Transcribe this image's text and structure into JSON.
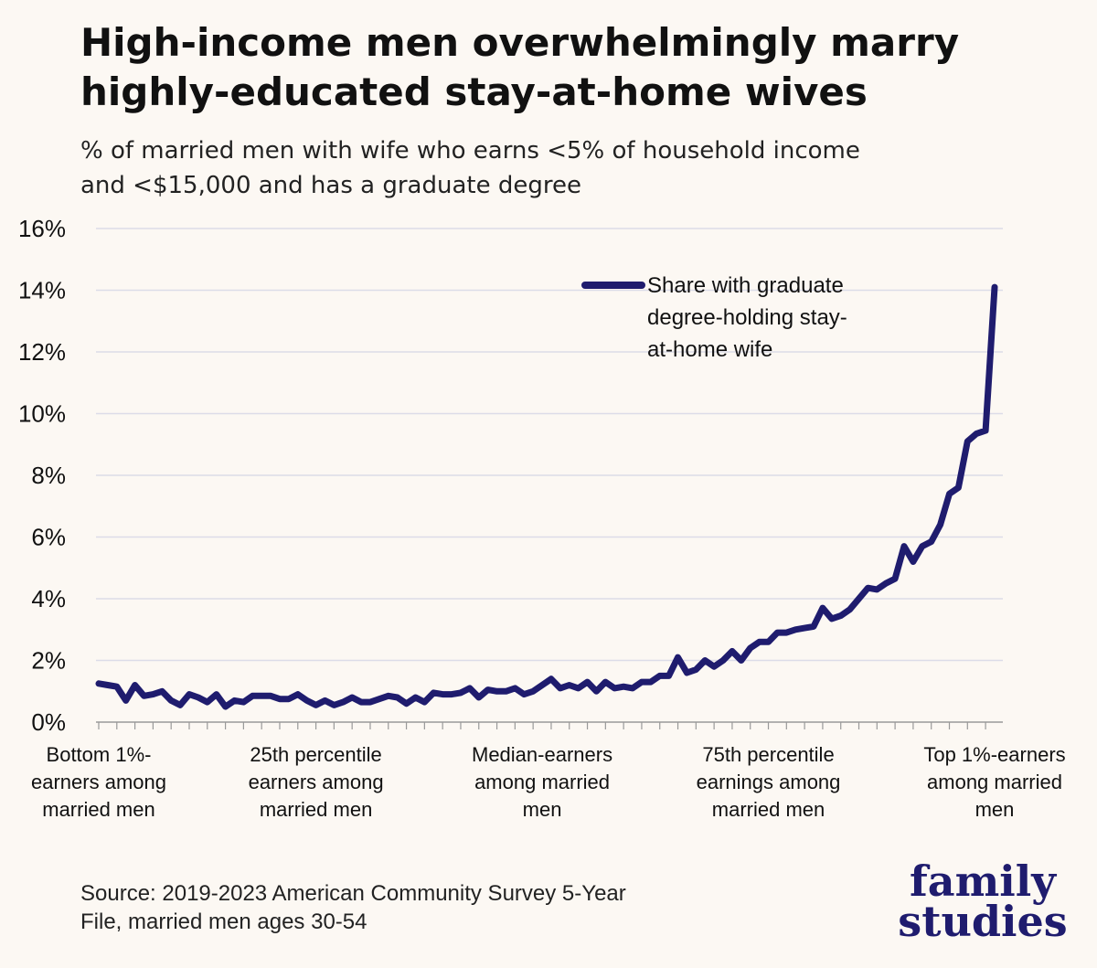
{
  "header": {
    "title": "High-income men overwhelmingly marry\nhighly-educated stay-at-home wives",
    "subtitle": "% of married men with wife who earns <5% of household income\nand <$15,000 and has a graduate degree"
  },
  "footer": {
    "source": "Source: 2019-2023 American Community Survey 5-Year\nFile, married men ages 30-54",
    "logo_text": "family\nstudies"
  },
  "colors": {
    "line": "#1f1c6e",
    "grid": "#dcdce8",
    "background": "#fcf8f3"
  },
  "chart_data": {
    "type": "line",
    "title": "High-income men overwhelmingly marry highly-educated stay-at-home wives",
    "subtitle": "% of married men with wife who earns <5% of household income and <$15,000 and has a graduate degree",
    "xlabel": "",
    "ylabel": "",
    "ylim": [
      0,
      16
    ],
    "yticks": [
      0,
      2,
      4,
      6,
      8,
      10,
      12,
      14,
      16
    ],
    "ytick_labels": [
      "0%",
      "2%",
      "4%",
      "6%",
      "8%",
      "10%",
      "12%",
      "14%",
      "16%"
    ],
    "grid": true,
    "legend_position": "top-right",
    "x_category_labels": [
      {
        "pos": 1,
        "label": [
          "Bottom 1%-",
          "earners among",
          "married men"
        ]
      },
      {
        "pos": 25,
        "label": [
          "25th percentile",
          "earners among",
          "married men"
        ]
      },
      {
        "pos": 50,
        "label": [
          "Median-earners",
          "among married",
          "men"
        ]
      },
      {
        "pos": 75,
        "label": [
          "75th percentile",
          "earnings among",
          "married men"
        ]
      },
      {
        "pos": 100,
        "label": [
          "Top 1%-earners",
          "among married",
          "men"
        ]
      }
    ],
    "series": [
      {
        "name": "Share with graduate degree-holding stay-at-home wife",
        "legend_lines": [
          "Share with graduate",
          "degree-holding stay-",
          "at-home wife"
        ],
        "x": [
          1,
          2,
          3,
          4,
          5,
          6,
          7,
          8,
          9,
          10,
          11,
          12,
          13,
          14,
          15,
          16,
          17,
          18,
          19,
          20,
          21,
          22,
          23,
          24,
          25,
          26,
          27,
          28,
          29,
          30,
          31,
          32,
          33,
          34,
          35,
          36,
          37,
          38,
          39,
          40,
          41,
          42,
          43,
          44,
          45,
          46,
          47,
          48,
          49,
          50,
          51,
          52,
          53,
          54,
          55,
          56,
          57,
          58,
          59,
          60,
          61,
          62,
          63,
          64,
          65,
          66,
          67,
          68,
          69,
          70,
          71,
          72,
          73,
          74,
          75,
          76,
          77,
          78,
          79,
          80,
          81,
          82,
          83,
          84,
          85,
          86,
          87,
          88,
          89,
          90,
          91,
          92,
          93,
          94,
          95,
          96,
          97,
          98,
          99,
          100
        ],
        "values": [
          1.25,
          1.2,
          1.15,
          0.7,
          1.2,
          0.85,
          0.9,
          1.0,
          0.7,
          0.55,
          0.9,
          0.8,
          0.65,
          0.9,
          0.5,
          0.7,
          0.65,
          0.85,
          0.85,
          0.85,
          0.75,
          0.75,
          0.9,
          0.7,
          0.55,
          0.7,
          0.55,
          0.65,
          0.8,
          0.65,
          0.65,
          0.75,
          0.85,
          0.8,
          0.6,
          0.8,
          0.65,
          0.95,
          0.9,
          0.9,
          0.95,
          1.1,
          0.8,
          1.05,
          1.0,
          1.0,
          1.1,
          0.9,
          1.0,
          1.2,
          1.4,
          1.1,
          1.2,
          1.1,
          1.3,
          1.0,
          1.3,
          1.1,
          1.15,
          1.1,
          1.3,
          1.3,
          1.5,
          1.5,
          2.1,
          1.6,
          1.7,
          2.0,
          1.8,
          2.0,
          2.3,
          2.0,
          2.4,
          2.6,
          2.6,
          2.9,
          2.9,
          3.0,
          3.05,
          3.1,
          3.7,
          3.35,
          3.45,
          3.65,
          4.0,
          4.35,
          4.3,
          4.5,
          4.65,
          5.7,
          5.2,
          5.7,
          5.85,
          6.4,
          7.4,
          7.6,
          9.1,
          9.35,
          9.45,
          14.1
        ]
      }
    ]
  }
}
